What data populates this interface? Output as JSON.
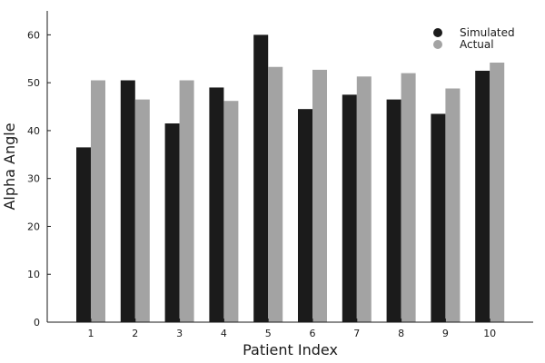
{
  "chart_data": {
    "type": "bar",
    "xlabel": "Patient Index",
    "ylabel": "Alpha Angle",
    "categories": [
      "1",
      "2",
      "3",
      "4",
      "5",
      "6",
      "7",
      "8",
      "9",
      "10"
    ],
    "ylim": [
      0,
      65
    ],
    "yticks": [
      0,
      10,
      20,
      30,
      40,
      50,
      60
    ],
    "grid": false,
    "legend_position": "top-right",
    "series": [
      {
        "name": "Simulated",
        "color": "#1b1b1b",
        "values": [
          36.5,
          50.5,
          41.5,
          49.0,
          60.0,
          44.5,
          47.5,
          46.5,
          43.5,
          52.5
        ]
      },
      {
        "name": "Actual",
        "color": "#a3a3a3",
        "values": [
          50.5,
          46.5,
          50.5,
          46.2,
          53.3,
          52.7,
          51.3,
          52.0,
          48.8,
          54.2
        ]
      }
    ]
  }
}
